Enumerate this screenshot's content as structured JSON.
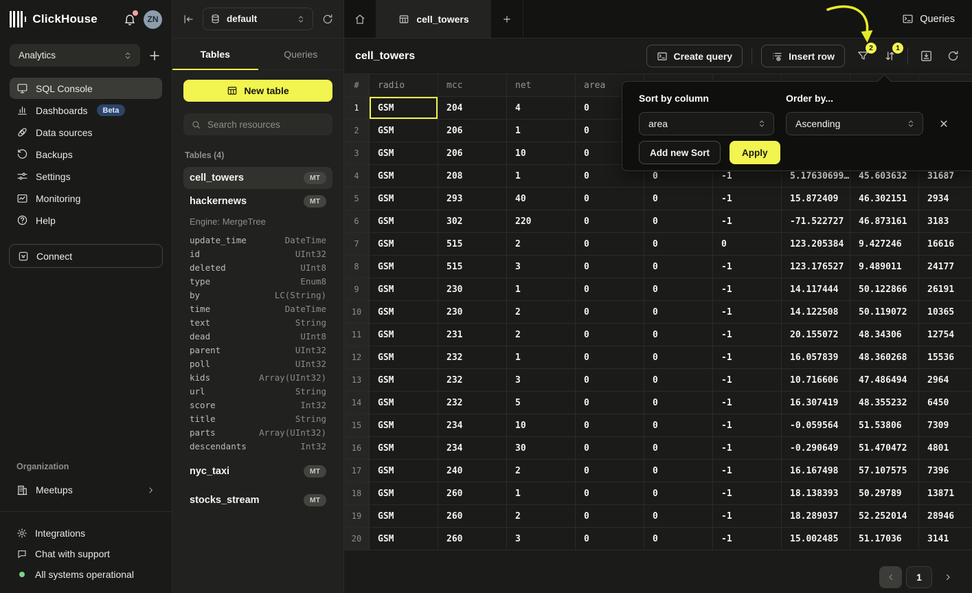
{
  "brand": {
    "name": "ClickHouse",
    "avatar": "ZN"
  },
  "workspace": {
    "name": "Analytics"
  },
  "colors": {
    "accent_yellow": "#f2f44f",
    "beta_badge_blue": "#2c4467",
    "status_green": "#7ed487",
    "selection_yellow": "#f2f44f"
  },
  "sidebar": {
    "items": [
      {
        "id": "sql-console",
        "label": "SQL Console",
        "icon": "monitor",
        "active": true
      },
      {
        "id": "dashboards",
        "label": "Dashboards",
        "icon": "bar-chart",
        "badge": "Beta"
      },
      {
        "id": "data-sources",
        "label": "Data sources",
        "icon": "orbit"
      },
      {
        "id": "backups",
        "label": "Backups",
        "icon": "history"
      },
      {
        "id": "settings",
        "label": "Settings",
        "icon": "sliders"
      },
      {
        "id": "monitoring",
        "label": "Monitoring",
        "icon": "activity"
      },
      {
        "id": "help",
        "label": "Help",
        "icon": "help-circle"
      }
    ],
    "connect_label": "Connect",
    "organization_label": "Organization",
    "meetups_label": "Meetups",
    "footer_items": [
      {
        "id": "integrations",
        "label": "Integrations",
        "icon": "cog"
      },
      {
        "id": "chat-support",
        "label": "Chat with support",
        "icon": "chat-bubble"
      },
      {
        "id": "system-status",
        "label": "All systems operational",
        "icon": "status-dot"
      }
    ]
  },
  "explorer": {
    "database": "default",
    "tabs": [
      {
        "label": "Tables",
        "active": true
      },
      {
        "label": "Queries",
        "active": false
      }
    ],
    "new_table_label": "New table",
    "search_placeholder": "Search resources",
    "section_label": "Tables (4)",
    "tables": [
      {
        "name": "cell_towers",
        "badge": "MT",
        "selected": true
      },
      {
        "name": "hackernews",
        "badge": "MT",
        "engine": "Engine: MergeTree",
        "columns": [
          [
            "update_time",
            "DateTime"
          ],
          [
            "id",
            "UInt32"
          ],
          [
            "deleted",
            "UInt8"
          ],
          [
            "type",
            "Enum8"
          ],
          [
            "by",
            "LC(String)"
          ],
          [
            "time",
            "DateTime"
          ],
          [
            "text",
            "String"
          ],
          [
            "dead",
            "UInt8"
          ],
          [
            "parent",
            "UInt32"
          ],
          [
            "poll",
            "UInt32"
          ],
          [
            "kids",
            "Array(UInt32)"
          ],
          [
            "url",
            "String"
          ],
          [
            "score",
            "Int32"
          ],
          [
            "title",
            "String"
          ],
          [
            "parts",
            "Array(UInt32)"
          ],
          [
            "descendants",
            "Int32"
          ]
        ]
      },
      {
        "name": "nyc_taxi",
        "badge": "MT"
      },
      {
        "name": "stocks_stream",
        "badge": "MT"
      }
    ]
  },
  "main": {
    "queries_label": "Queries",
    "active_tab": "cell_towers",
    "title": "cell_towers",
    "create_query_label": "Create query",
    "insert_row_label": "Insert row",
    "filter_badge": "2",
    "sort_badge": "1",
    "pagination": {
      "page": "1"
    }
  },
  "grid": {
    "headers": [
      "#",
      "radio",
      "mcc",
      "net",
      "area",
      "",
      "",
      "",
      "",
      ""
    ],
    "rows": [
      [
        "GSM",
        "204",
        "4",
        "0",
        "",
        "",
        "",
        "",
        ""
      ],
      [
        "GSM",
        "206",
        "1",
        "0",
        "",
        "",
        "",
        "",
        ""
      ],
      [
        "GSM",
        "206",
        "10",
        "0",
        "",
        "",
        "",
        "",
        ""
      ],
      [
        "GSM",
        "208",
        "1",
        "0",
        "0",
        "-1",
        "5.17630699…",
        "45.603632",
        "31687"
      ],
      [
        "GSM",
        "293",
        "40",
        "0",
        "0",
        "-1",
        "15.872409",
        "46.302151",
        "2934"
      ],
      [
        "GSM",
        "302",
        "220",
        "0",
        "0",
        "-1",
        "-71.522727",
        "46.873161",
        "3183"
      ],
      [
        "GSM",
        "515",
        "2",
        "0",
        "0",
        "0",
        "123.205384",
        "9.427246",
        "16616"
      ],
      [
        "GSM",
        "515",
        "3",
        "0",
        "0",
        "-1",
        "123.176527",
        "9.489011",
        "24177"
      ],
      [
        "GSM",
        "230",
        "1",
        "0",
        "0",
        "-1",
        "14.117444",
        "50.122866",
        "26191"
      ],
      [
        "GSM",
        "230",
        "2",
        "0",
        "0",
        "-1",
        "14.122508",
        "50.119072",
        "10365"
      ],
      [
        "GSM",
        "231",
        "2",
        "0",
        "0",
        "-1",
        "20.155072",
        "48.34306",
        "12754"
      ],
      [
        "GSM",
        "232",
        "1",
        "0",
        "0",
        "-1",
        "16.057839",
        "48.360268",
        "15536"
      ],
      [
        "GSM",
        "232",
        "3",
        "0",
        "0",
        "-1",
        "10.716606",
        "47.486494",
        "2964"
      ],
      [
        "GSM",
        "232",
        "5",
        "0",
        "0",
        "-1",
        "16.307419",
        "48.355232",
        "6450"
      ],
      [
        "GSM",
        "234",
        "10",
        "0",
        "0",
        "-1",
        "-0.059564",
        "51.53806",
        "7309"
      ],
      [
        "GSM",
        "234",
        "30",
        "0",
        "0",
        "-1",
        "-0.290649",
        "51.470472",
        "4801"
      ],
      [
        "GSM",
        "240",
        "2",
        "0",
        "0",
        "-1",
        "16.167498",
        "57.107575",
        "7396"
      ],
      [
        "GSM",
        "260",
        "1",
        "0",
        "0",
        "-1",
        "18.138393",
        "50.29789",
        "13871"
      ],
      [
        "GSM",
        "260",
        "2",
        "0",
        "0",
        "-1",
        "18.289037",
        "52.252014",
        "28946"
      ],
      [
        "GSM",
        "260",
        "3",
        "0",
        "0",
        "-1",
        "15.002485",
        "51.17036",
        "3141"
      ]
    ],
    "selected_cell": {
      "row": 0,
      "col": 0
    }
  },
  "sort_popup": {
    "sort_by_label": "Sort by column",
    "sort_by_value": "area",
    "order_by_label": "Order by...",
    "order_by_value": "Ascending",
    "add_sort_label": "Add new Sort",
    "apply_label": "Apply"
  }
}
